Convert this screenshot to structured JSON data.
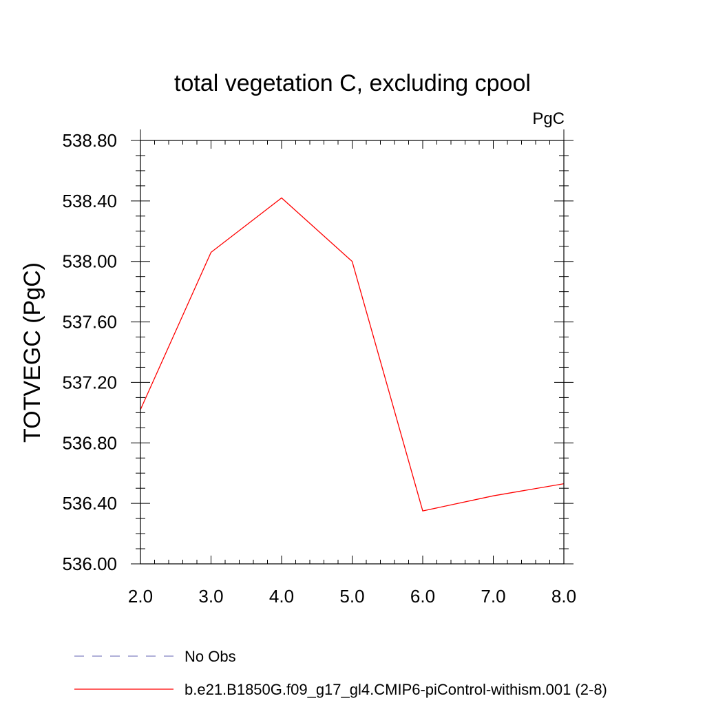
{
  "chart_data": {
    "type": "line",
    "title": "total vegetation C, excluding cpool",
    "units_label": "PgC",
    "xlabel": "",
    "ylabel": "TOTVEGC  (PgC)",
    "xlim": [
      2.0,
      8.0
    ],
    "ylim": [
      536.0,
      538.8
    ],
    "x_ticks": [
      "2.0",
      "3.0",
      "4.0",
      "5.0",
      "6.0",
      "7.0",
      "8.0"
    ],
    "y_ticks": [
      "536.00",
      "536.40",
      "536.80",
      "537.20",
      "537.60",
      "538.00",
      "538.40",
      "538.80"
    ],
    "grid": false,
    "series": [
      {
        "name": "b.e21.B1850G.f09_g17_gl4.CMIP6-piControl-withism.001 (2-8)",
        "color": "#ff0000",
        "dash": "solid",
        "x": [
          2.0,
          3.0,
          4.0,
          5.0,
          6.0,
          7.0,
          8.0
        ],
        "y": [
          537.02,
          538.06,
          538.42,
          538.0,
          536.35,
          536.45,
          536.53
        ]
      }
    ],
    "legend": [
      {
        "label": "No Obs",
        "color": "#8080c0",
        "dash": "dashed"
      },
      {
        "label": "b.e21.B1850G.f09_g17_gl4.CMIP6-piControl-withism.001 (2-8)",
        "color": "#ff0000",
        "dash": "solid"
      }
    ],
    "legend_position": "bottom"
  }
}
